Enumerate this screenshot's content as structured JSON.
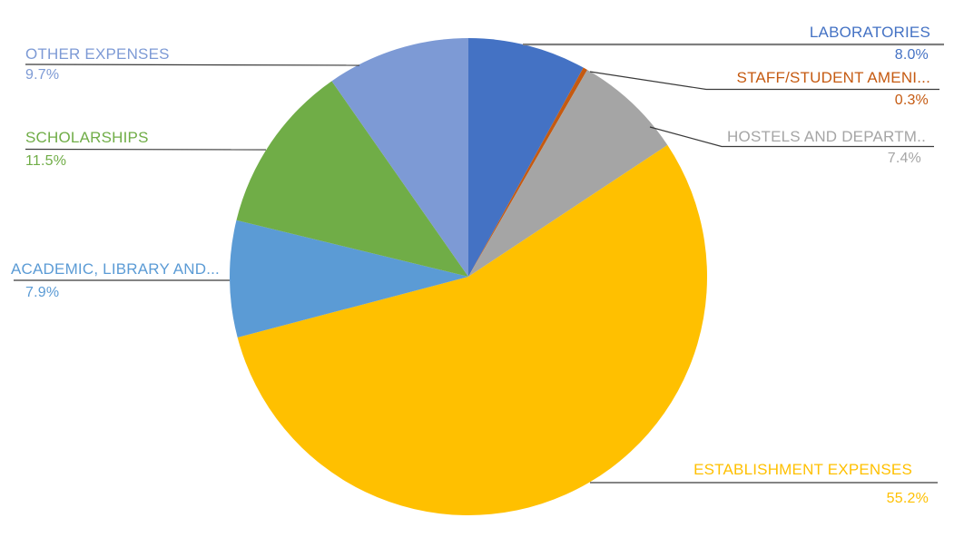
{
  "page": {
    "background_color": "#FFFFFF"
  },
  "chart_data": {
    "type": "pie",
    "title": "",
    "legend": "none",
    "labels_style": "outside callout labels with category name and percentage",
    "start_angle_deg": 0,
    "direction": "clockwise",
    "slices": [
      {
        "label": "LABORATORIES",
        "pct_label": "8.0%",
        "value": 8.0,
        "color": "#4472C4"
      },
      {
        "label": "STAFF/STUDENT AMENI...",
        "pct_label": "0.3%",
        "value": 0.3,
        "color": "#C55A11"
      },
      {
        "label": "HOSTELS AND DEPARTM..",
        "pct_label": "7.4%",
        "value": 7.4,
        "color": "#A5A5A5"
      },
      {
        "label": "ESTABLISHMENT EXPENSES",
        "pct_label": "55.2%",
        "value": 55.2,
        "color": "#FFC000"
      },
      {
        "label": "ACADEMIC, LIBRARY AND...",
        "pct_label": "7.9%",
        "value": 7.9,
        "color": "#5B9BD5"
      },
      {
        "label": "SCHOLARSHIPS",
        "pct_label": "11.5%",
        "value": 11.5,
        "color": "#70AD47"
      },
      {
        "label": "OTHER EXPENSES",
        "pct_label": "9.7%",
        "value": 9.7,
        "color": "#7D9AD5"
      }
    ],
    "leader_line_colors": {
      "laboratories": "#7F7F7F",
      "default": "#3A3A3A"
    }
  }
}
